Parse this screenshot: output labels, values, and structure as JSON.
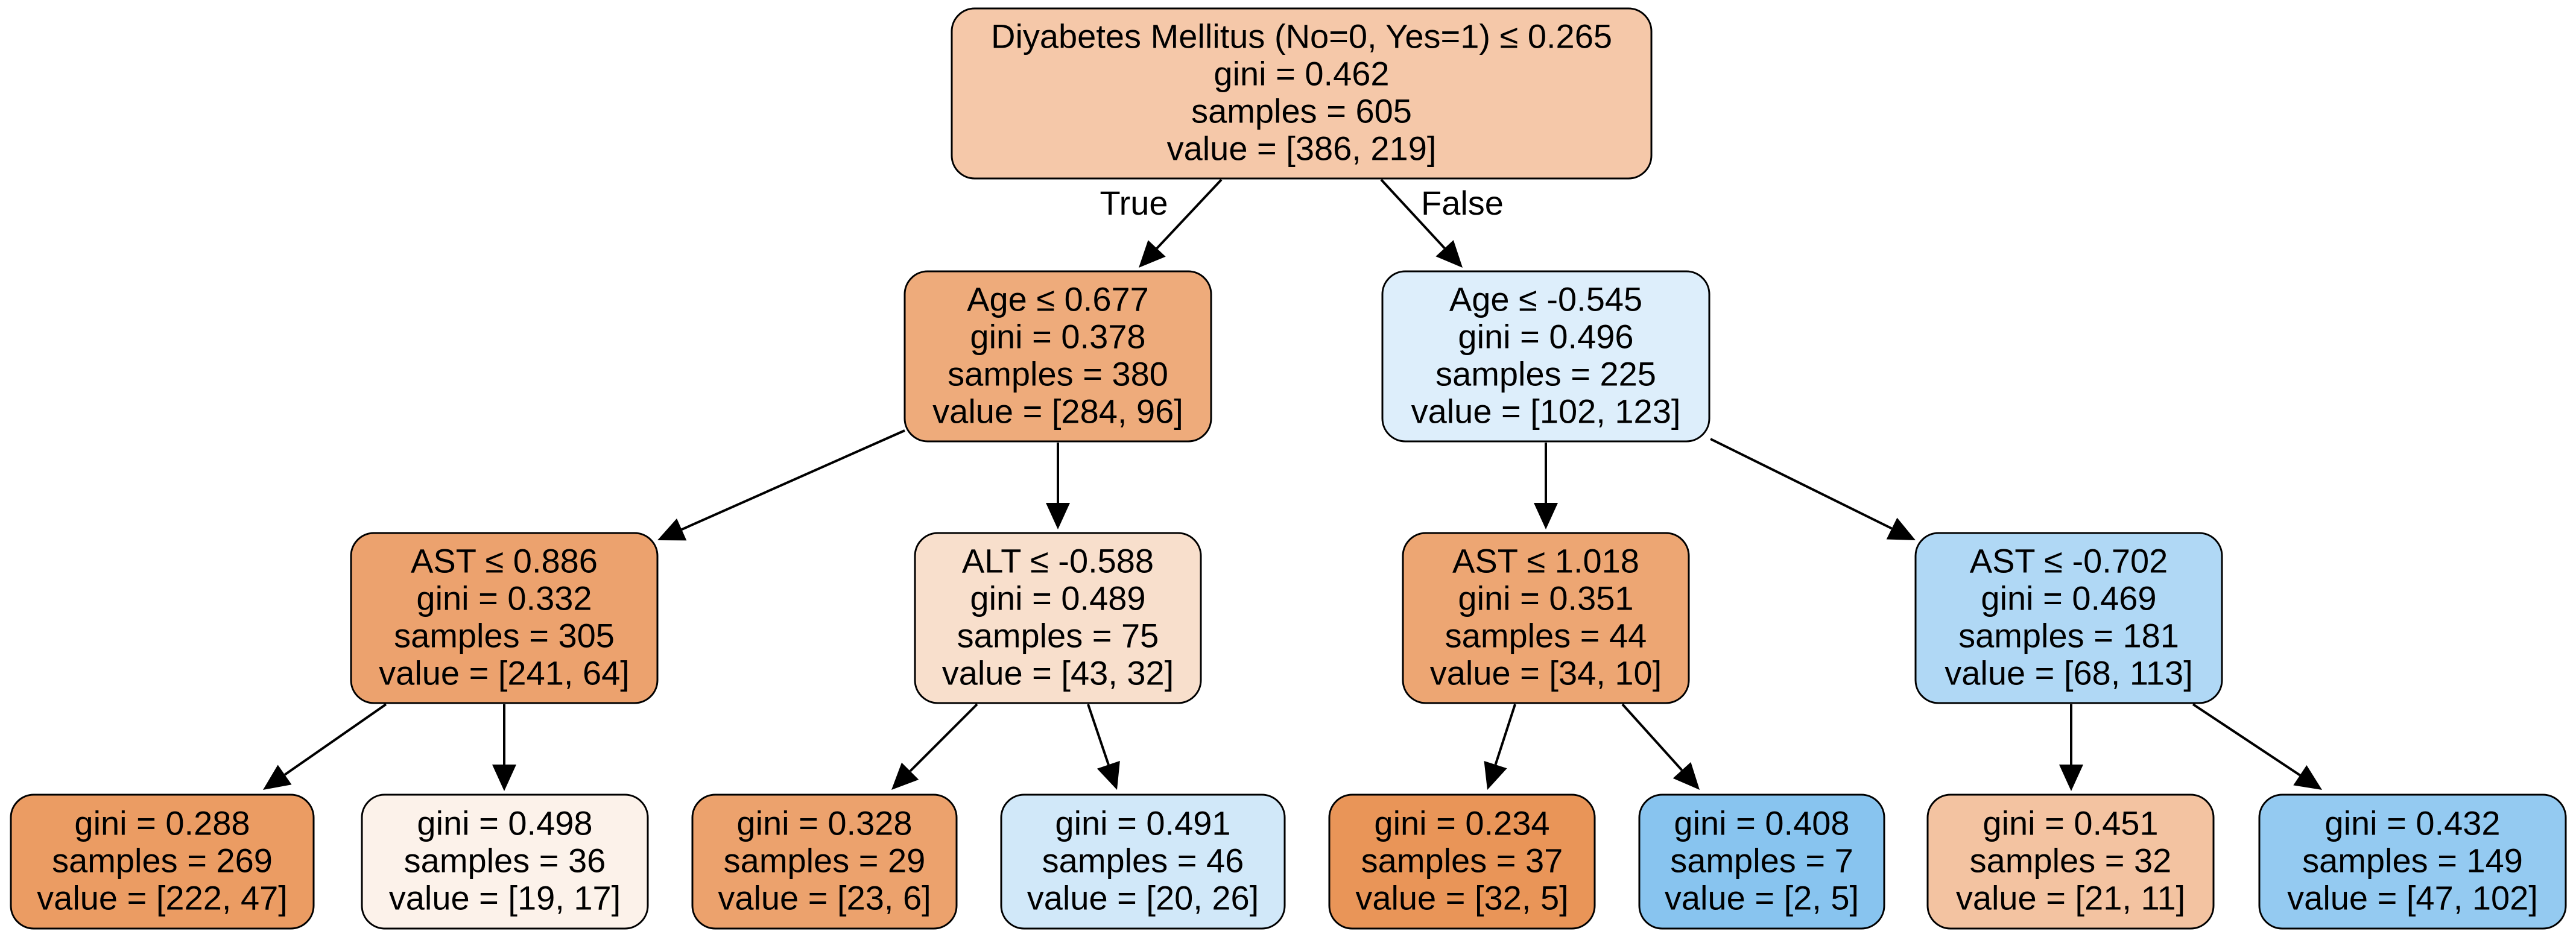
{
  "tree": {
    "nodes": [
      {
        "id": "root",
        "kind": "split",
        "lines": [
          "Diyabetes Mellitus (No=0, Yes=1) ≤ 0.265",
          "gini = 0.462",
          "samples = 605",
          "value = [386, 219]"
        ],
        "fill": "#f5c8a9"
      },
      {
        "id": "n1",
        "kind": "split",
        "lines": [
          "Age ≤ 0.677",
          "gini = 0.378",
          "samples = 380",
          "value = [284, 96]"
        ],
        "fill": "#eeab7b"
      },
      {
        "id": "n2",
        "kind": "split",
        "lines": [
          "Age ≤ -0.545",
          "gini = 0.496",
          "samples = 225",
          "value = [102, 123]"
        ],
        "fill": "#ddeefb"
      },
      {
        "id": "n3",
        "kind": "split",
        "lines": [
          "AST ≤ 0.886",
          "gini = 0.332",
          "samples = 305",
          "value = [241, 64]"
        ],
        "fill": "#eca26e"
      },
      {
        "id": "n4",
        "kind": "split",
        "lines": [
          "ALT ≤ -0.588",
          "gini = 0.489",
          "samples = 75",
          "value = [43, 32]"
        ],
        "fill": "#f8dfcc"
      },
      {
        "id": "n5",
        "kind": "split",
        "lines": [
          "AST ≤ 1.018",
          "gini = 0.351",
          "samples = 44",
          "value = [34, 10]"
        ],
        "fill": "#eda673"
      },
      {
        "id": "n6",
        "kind": "split",
        "lines": [
          "AST ≤ -0.702",
          "gini = 0.469",
          "samples = 181",
          "value = [68, 113]"
        ],
        "fill": "#b0d8f5"
      },
      {
        "id": "l1",
        "kind": "leaf",
        "lines": [
          "gini = 0.288",
          "samples = 269",
          "value = [222, 47]"
        ],
        "fill": "#eb9c63"
      },
      {
        "id": "l2",
        "kind": "leaf",
        "lines": [
          "gini = 0.498",
          "samples = 36",
          "value = [19, 17]"
        ],
        "fill": "#fcf2ea"
      },
      {
        "id": "l3",
        "kind": "leaf",
        "lines": [
          "gini = 0.328",
          "samples = 29",
          "value = [23, 6]"
        ],
        "fill": "#eca26d"
      },
      {
        "id": "l4",
        "kind": "leaf",
        "lines": [
          "gini = 0.491",
          "samples = 46",
          "value = [20, 26]"
        ],
        "fill": "#d1e8f9"
      },
      {
        "id": "l5",
        "kind": "leaf",
        "lines": [
          "gini = 0.234",
          "samples = 37",
          "value = [32, 5]"
        ],
        "fill": "#e99558"
      },
      {
        "id": "l6",
        "kind": "leaf",
        "lines": [
          "gini = 0.408",
          "samples = 7",
          "value = [2, 5]"
        ],
        "fill": "#88c4ef"
      },
      {
        "id": "l7",
        "kind": "leaf",
        "lines": [
          "gini = 0.451",
          "samples = 32",
          "value = [21, 11]"
        ],
        "fill": "#f3c3a1"
      },
      {
        "id": "l8",
        "kind": "leaf",
        "lines": [
          "gini = 0.432",
          "samples = 149",
          "value = [47, 102]"
        ],
        "fill": "#94caf1"
      }
    ],
    "edges": [
      {
        "from": "root",
        "to": "n1",
        "label": "True"
      },
      {
        "from": "root",
        "to": "n2",
        "label": "False"
      },
      {
        "from": "n1",
        "to": "n3",
        "label": ""
      },
      {
        "from": "n1",
        "to": "n4",
        "label": ""
      },
      {
        "from": "n2",
        "to": "n5",
        "label": ""
      },
      {
        "from": "n2",
        "to": "n6",
        "label": ""
      },
      {
        "from": "n3",
        "to": "l1",
        "label": ""
      },
      {
        "from": "n3",
        "to": "l2",
        "label": ""
      },
      {
        "from": "n4",
        "to": "l3",
        "label": ""
      },
      {
        "from": "n4",
        "to": "l4",
        "label": ""
      },
      {
        "from": "n5",
        "to": "l5",
        "label": ""
      },
      {
        "from": "n5",
        "to": "l6",
        "label": ""
      },
      {
        "from": "n6",
        "to": "l7",
        "label": ""
      },
      {
        "from": "n6",
        "to": "l8",
        "label": ""
      }
    ],
    "colors": {
      "stroke": "#000000",
      "edge": "#000000",
      "background": "#ffffff"
    }
  }
}
